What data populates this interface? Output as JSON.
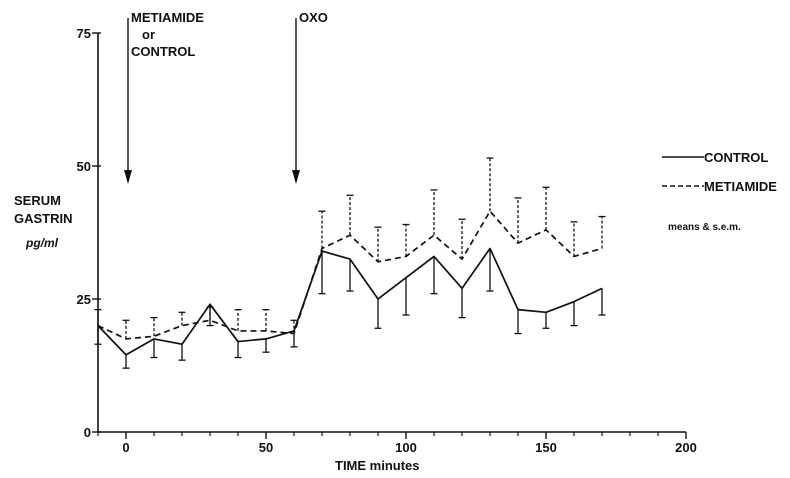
{
  "chart_data": {
    "type": "line",
    "xlabel": "TIME  minutes",
    "ylabel_lines": [
      "SERUM",
      "GASTRIN",
      "pg/ml"
    ],
    "xlim": [
      -10,
      200
    ],
    "ylim": [
      0,
      75
    ],
    "x_ticks": [
      0,
      50,
      100,
      150,
      200
    ],
    "y_ticks": [
      0,
      25,
      50,
      75
    ],
    "grid": false,
    "legend_position": "right",
    "legend_note": "means & s.e.m.",
    "annotations": [
      {
        "x": 0,
        "lines": [
          "METIAMIDE",
          "or",
          "CONTROL"
        ]
      },
      {
        "x": 60,
        "lines": [
          "OXO"
        ]
      }
    ],
    "series": [
      {
        "name": "CONTROL",
        "style": "solid",
        "x": [
          -10,
          0,
          10,
          20,
          30,
          40,
          50,
          60,
          70,
          80,
          90,
          100,
          110,
          120,
          130,
          140,
          150,
          160,
          170
        ],
        "y": [
          20,
          14.5,
          17.5,
          16.5,
          24,
          17,
          17.5,
          19,
          34,
          32.5,
          25,
          29,
          33,
          27,
          34.5,
          23,
          22.5,
          24.5,
          27
        ],
        "err": [
          3.5,
          2.5,
          3.5,
          3,
          4,
          3,
          2.5,
          3,
          8,
          6,
          5.5,
          7,
          7,
          5.5,
          8,
          4.5,
          3,
          4.5,
          5
        ]
      },
      {
        "name": "METIAMIDE",
        "style": "dashed",
        "x": [
          -10,
          0,
          10,
          20,
          30,
          40,
          50,
          60,
          70,
          80,
          90,
          100,
          110,
          120,
          130,
          140,
          150,
          160,
          170
        ],
        "y": [
          20,
          17.5,
          18,
          20,
          21,
          19,
          19,
          18.5,
          34.5,
          37,
          32,
          33,
          37,
          32.5,
          41.5,
          35.5,
          38,
          33,
          34.5
        ],
        "err": [
          3,
          3.5,
          3.5,
          2.5,
          2.5,
          4,
          4,
          2.5,
          7,
          7.5,
          6.5,
          6,
          8.5,
          7.5,
          10,
          8.5,
          8,
          6.5,
          6
        ]
      }
    ]
  }
}
